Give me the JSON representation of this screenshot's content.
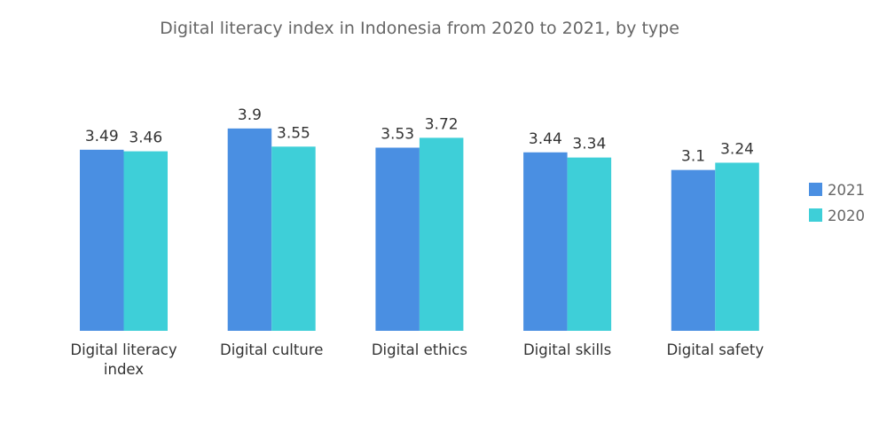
{
  "chart_data": {
    "type": "bar",
    "title": "Digital literacy index in Indonesia from 2020 to 2021, by type",
    "categories": [
      [
        "Digital literacy",
        "index"
      ],
      [
        "Digital culture"
      ],
      [
        "Digital ethics"
      ],
      [
        "Digital skills"
      ],
      [
        "Digital safety"
      ]
    ],
    "series": [
      {
        "name": "2021",
        "color": "#4a8fe2",
        "values": [
          3.49,
          3.9,
          3.53,
          3.44,
          3.1
        ]
      },
      {
        "name": "2020",
        "color": "#3ecfd8",
        "values": [
          3.46,
          3.55,
          3.72,
          3.34,
          3.24
        ]
      }
    ],
    "ylim": [
      0,
      4
    ],
    "grid": false,
    "legend": "right",
    "xlabel": "",
    "ylabel": ""
  }
}
